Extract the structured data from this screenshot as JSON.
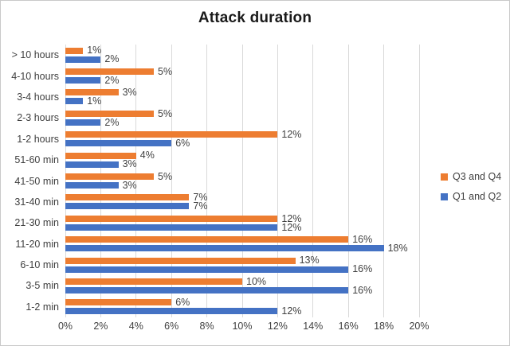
{
  "colors": {
    "q3q4_orange": "#ED7D31",
    "q1q2_blue": "#4472C4",
    "gridline": "#D9D9D9",
    "text": "#404040",
    "title_text": "#1A1A1A",
    "chart_border": "#C9C9C9",
    "background": "#FFFFFF"
  },
  "chart_data": {
    "type": "bar",
    "orientation": "horizontal",
    "title": "Attack duration",
    "xlabel": "",
    "ylabel": "",
    "xlim": [
      0,
      20
    ],
    "grid": "vertical",
    "legend_position": "right",
    "categories": [
      "> 10 hours",
      "4-10 hours",
      "3-4 hours",
      "2-3 hours",
      "1-2 hours",
      "51-60 min",
      "41-50 min",
      "31-40 min",
      "21-30 min",
      "11-20 min",
      "6-10 min",
      "3-5 min",
      "1-2 min"
    ],
    "series": [
      {
        "name": "Q3 and Q4",
        "color": "#ED7D31",
        "values": [
          1,
          5,
          3,
          5,
          12,
          4,
          5,
          7,
          12,
          16,
          13,
          10,
          6
        ],
        "labels": [
          "1%",
          "5%",
          "3%",
          "5%",
          "12%",
          "4%",
          "5%",
          "7%",
          "12%",
          "16%",
          "13%",
          "10%",
          "6%"
        ]
      },
      {
        "name": "Q1 and Q2",
        "color": "#4472C4",
        "values": [
          2,
          2,
          1,
          2,
          6,
          3,
          3,
          7,
          12,
          18,
          16,
          16,
          12
        ],
        "labels": [
          "2%",
          "2%",
          "1%",
          "2%",
          "6%",
          "3%",
          "3%",
          "7%",
          "12%",
          "18%",
          "16%",
          "16%",
          "12%"
        ]
      }
    ],
    "x_ticks": [
      "0%",
      "2%",
      "4%",
      "6%",
      "8%",
      "10%",
      "12%",
      "14%",
      "16%",
      "18%",
      "20%"
    ]
  }
}
